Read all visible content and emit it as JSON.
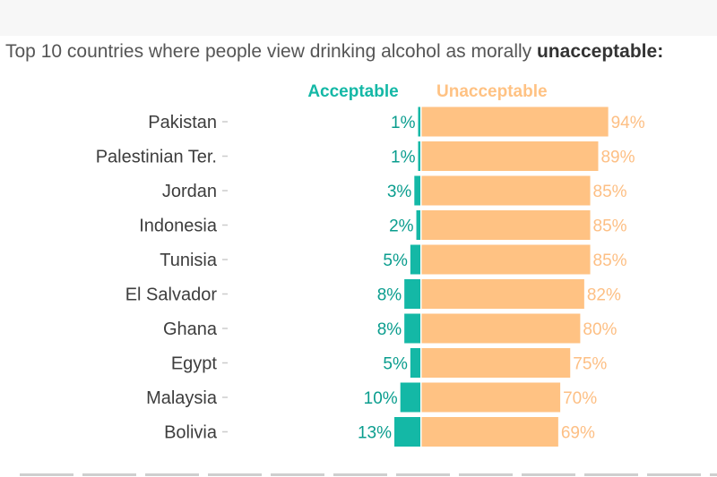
{
  "title": {
    "prefix": "Top 10 countries where people view drinking alcohol as morally ",
    "emphasis": "unacceptable:"
  },
  "colors": {
    "acceptable": "#14b8a6",
    "acceptable_dark": "#0a9d8e",
    "unacceptable": "#ffc283",
    "unacceptable_text": "#fdbf84",
    "country_text": "#3d3d3d",
    "tick": "#cccccc"
  },
  "chart_data": {
    "type": "bar",
    "subtype": "diverging-horizontal",
    "title": "Top 10 countries where people view drinking alcohol as morally unacceptable:",
    "categories": [
      "Pakistan",
      "Palestinian Ter.",
      "Jordan",
      "Indonesia",
      "Tunisia",
      "El Salvador",
      "Ghana",
      "Egypt",
      "Malaysia",
      "Bolivia"
    ],
    "series": [
      {
        "name": "Acceptable",
        "values": [
          1,
          1,
          3,
          2,
          5,
          8,
          8,
          5,
          10,
          13
        ],
        "labels": [
          "1%",
          "1%",
          "3%",
          "2%",
          "5%",
          "8%",
          "8%",
          "5%",
          "10%",
          "13%"
        ]
      },
      {
        "name": "Unacceptable",
        "values": [
          94,
          89,
          85,
          85,
          85,
          82,
          80,
          75,
          70,
          69
        ],
        "labels": [
          "94%",
          "89%",
          "85%",
          "85%",
          "85%",
          "82%",
          "80%",
          "75%",
          "70%",
          "69%"
        ]
      }
    ],
    "unit": "%",
    "legend": "top",
    "grid": false
  }
}
